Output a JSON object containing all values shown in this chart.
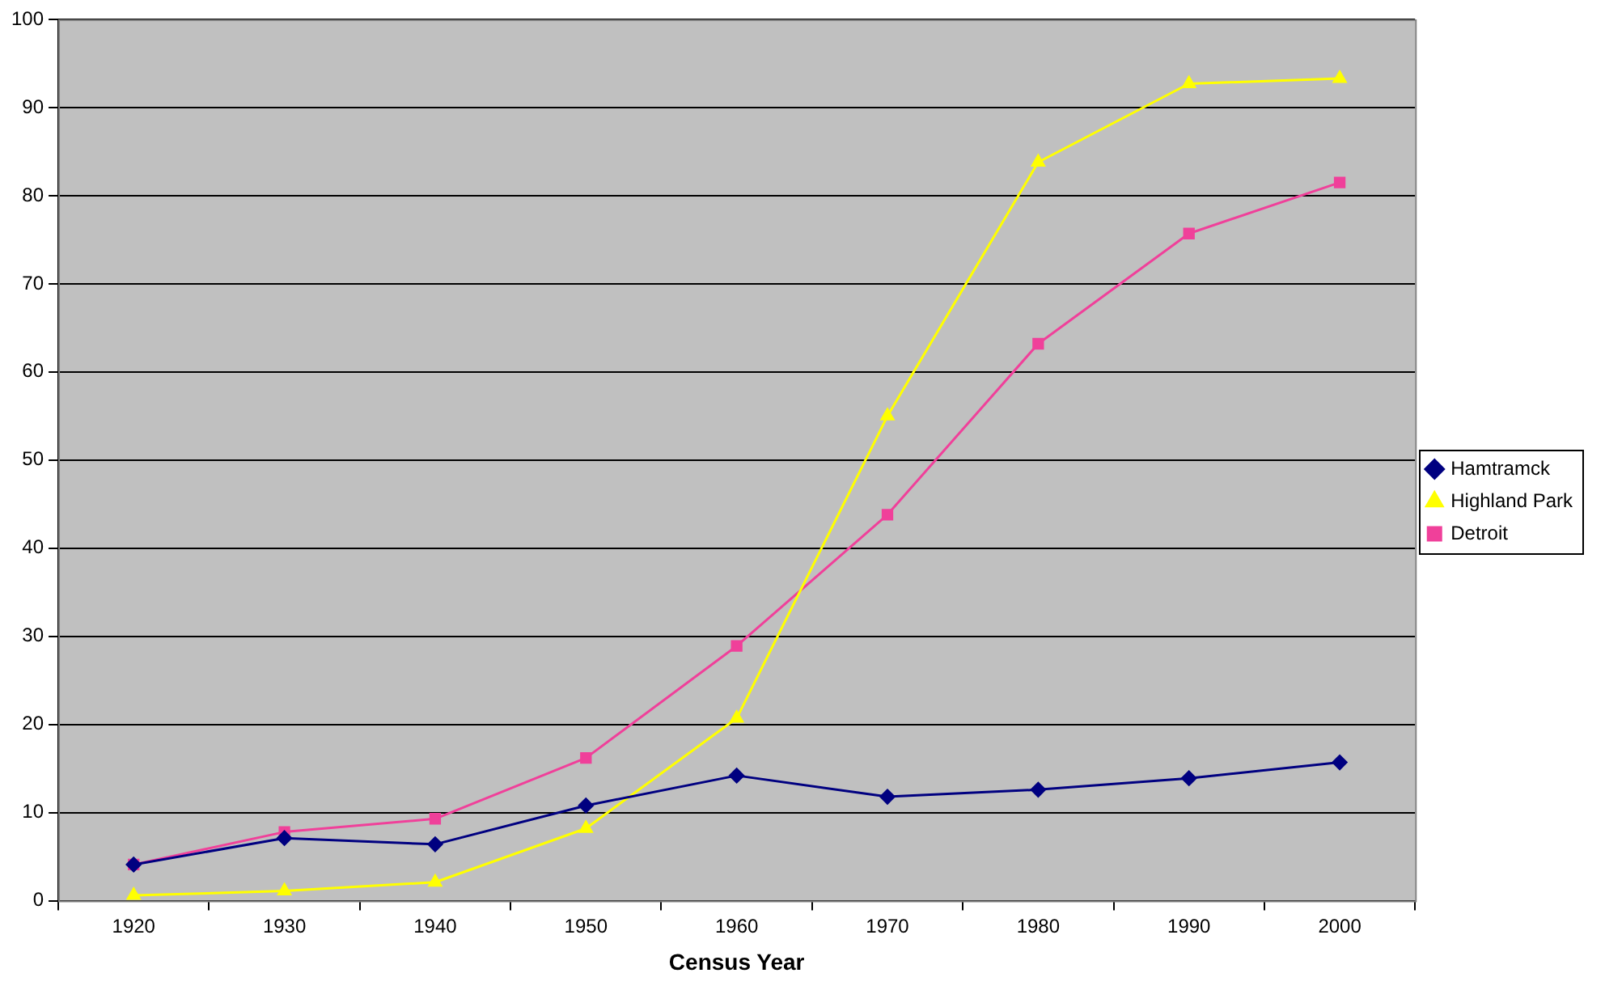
{
  "chart_data": {
    "type": "line",
    "xlabel": "Census Year",
    "categories": [
      "1920",
      "1930",
      "1940",
      "1950",
      "1960",
      "1970",
      "1980",
      "1990",
      "2000"
    ],
    "series": [
      {
        "name": "Hamtramck",
        "color": "#000080",
        "marker": "diamond",
        "values": [
          4.1,
          7.1,
          6.4,
          10.8,
          14.2,
          11.8,
          12.6,
          13.9,
          15.7
        ]
      },
      {
        "name": "Highland Park",
        "color": "#ffff00",
        "marker": "triangle",
        "values": [
          0.6,
          1.1,
          2.1,
          8.2,
          20.7,
          55,
          83.8,
          92.7,
          93.3
        ]
      },
      {
        "name": "Detroit",
        "color": "#f0409a",
        "marker": "square",
        "values": [
          4.1,
          7.8,
          9.3,
          16.2,
          28.9,
          43.8,
          63.2,
          75.7,
          81.5
        ]
      }
    ],
    "ylim": [
      0,
      100
    ],
    "yticks": [
      0,
      10,
      20,
      30,
      40,
      50,
      60,
      70,
      80,
      90,
      100
    ],
    "grid": "y",
    "legend": "right"
  }
}
